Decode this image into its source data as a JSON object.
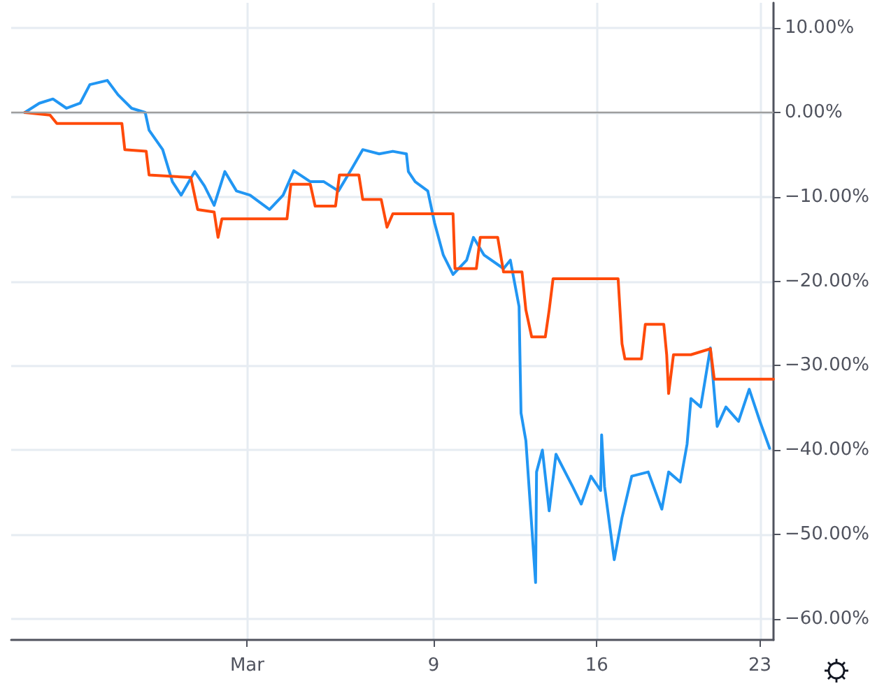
{
  "chart_data": {
    "type": "line",
    "xlim": [
      "--02-19T21:00",
      "--03-23T14:00"
    ],
    "xticks": [
      {
        "value": "--03-01",
        "label": "Mar"
      },
      {
        "value": "--03-09",
        "label": "9"
      },
      {
        "value": "--03-16",
        "label": "16"
      },
      {
        "value": "--03-23",
        "label": "23"
      }
    ],
    "ylim": [
      -62.5,
      13
    ],
    "yticks": [
      {
        "value": 10,
        "label": "10.00%"
      },
      {
        "value": 0,
        "label": "0.00%"
      },
      {
        "value": -10,
        "label": "−10.00%"
      },
      {
        "value": -20,
        "label": "−20.00%"
      },
      {
        "value": -30,
        "label": "−30.00%"
      },
      {
        "value": -40,
        "label": "−40.00%"
      },
      {
        "value": -50,
        "label": "−50.00%"
      },
      {
        "value": -60,
        "label": "−60.00%"
      }
    ],
    "grid": true,
    "marker": "none",
    "line_style": "solid",
    "ref_lines": [
      {
        "axis": "y",
        "value": 0,
        "color": "#9e9e9e"
      }
    ],
    "series": [
      {
        "color": "#2196f3",
        "x": [
          "--02-20T11:00",
          "--02-21T02:00",
          "--02-21T16:00",
          "--02-22T06:00",
          "--02-22T20:00",
          "--02-23T06:00",
          "--02-24T00:00",
          "--02-24T11:00",
          "--02-25T01:00",
          "--02-25T15:00",
          "--02-25T19:00",
          "--02-26T09:00",
          "--02-26T19:00",
          "--02-27T04:00",
          "--02-27T18:00",
          "--02-28T04:00",
          "--02-28T14:00",
          "--02-29T01:00",
          "--02-29T13:00",
          "--03-01T03:00",
          "--03-01T23:00",
          "--03-02T13:00",
          "--03-03T00:00",
          "--03-03T17:00",
          "--03-04T07:00",
          "--03-04T22:00",
          "--03-05T12:00",
          "--03-05T23:00",
          "--03-06T16:00",
          "--03-07T06:00",
          "--03-07T20:00",
          "--03-07T22:00",
          "--03-08T05:00",
          "--03-08T18:00",
          "--03-09T01:00",
          "--03-09T10:00",
          "--03-09T20:00",
          "--03-10T10:00",
          "--03-10T17:00",
          "--03-11T04:00",
          "--03-12T00:00",
          "--03-12T07:00",
          "--03-12T16:00",
          "--03-12T17:00",
          "--03-12T18:00",
          "--03-12T23:00",
          "--03-13T09:00",
          "--03-13T10:00",
          "--03-13T16:00",
          "--03-13T23:00",
          "--03-14T06:00",
          "--03-14T23:00",
          "--03-15T08:00",
          "--03-15T18:00",
          "--03-16T04:00",
          "--03-16T05:00",
          "--03-16T08:00",
          "--03-16T18:00",
          "--03-17T02:00",
          "--03-17T12:00",
          "--03-18T05:00",
          "--03-18T19:00",
          "--03-19T02:00",
          "--03-19T14:00",
          "--03-19T21:00",
          "--03-20T01:00",
          "--03-20T11:00",
          "--03-20T21:00",
          "--03-21T04:00",
          "--03-21T13:00",
          "--03-22T02:00",
          "--03-22T13:00",
          "--03-23T00:00",
          "--03-23T10:00"
        ],
        "values": [
          0,
          1.1,
          1.6,
          0.5,
          1.1,
          3.3,
          3.8,
          2.1,
          0.5,
          0,
          -2.1,
          -4.4,
          -8.2,
          -9.8,
          -7,
          -8.7,
          -11,
          -7,
          -9.3,
          -9.8,
          -11.5,
          -9.8,
          -6.9,
          -8.2,
          -8.2,
          -9.3,
          -6.6,
          -4.4,
          -4.9,
          -4.6,
          -4.9,
          -7,
          -8.2,
          -9.3,
          -13.1,
          -16.9,
          -19.2,
          -17.5,
          -14.8,
          -16.9,
          -18.5,
          -17.5,
          -23,
          -29.5,
          -35.6,
          -38.9,
          -55.7,
          -42.6,
          -40,
          -47.2,
          -40.5,
          -44.3,
          -46.4,
          -43.1,
          -44.8,
          -38.2,
          -44.3,
          -53,
          -48,
          -43.1,
          -42.6,
          -47,
          -42.6,
          -43.8,
          -39.3,
          -33.9,
          -34.9,
          -27.9,
          -37.2,
          -34.9,
          -36.6,
          -32.8,
          -36.6,
          -39.8
        ]
      },
      {
        "color": "#ff4a0a",
        "x": [
          "--02-20T11:00",
          "--02-21T13:00",
          "--02-21T20:00",
          "--02-24T15:00",
          "--02-24T18:00",
          "--02-25T16:00",
          "--02-25T19:00",
          "--02-27T14:00",
          "--02-27T21:00",
          "--02-28T14:00",
          "--02-28T18:00",
          "--02-28T22:00",
          "--03-02T17:00",
          "--03-02T21:00",
          "--03-03T17:00",
          "--03-03T22:00",
          "--03-04T19:00",
          "--03-04T23:00",
          "--03-05T19:00",
          "--03-05T23:00",
          "--03-06T18:00",
          "--03-07T00:00",
          "--03-07T06:00",
          "--03-09T20:00",
          "--03-09T22:00",
          "--03-10T20:00",
          "--03-11T00:00",
          "--03-11T18:00",
          "--03-12T00:00",
          "--03-12T19:00",
          "--03-12T23:00",
          "--03-13T05:00",
          "--03-13T19:00",
          "--03-13T23:00",
          "--03-14T03:00",
          "--03-16T22:00",
          "--03-17T02:00",
          "--03-17T05:00",
          "--03-17T22:00",
          "--03-18T02:00",
          "--03-18T21:00",
          "--03-19T00:00",
          "--03-19T02:00",
          "--03-19T07:00",
          "--03-20T01:00",
          "--03-20T21:00",
          "--03-21T01:00",
          "--03-23T14:00"
        ],
        "values": [
          0,
          -0.3,
          -1.3,
          -1.3,
          -4.4,
          -4.6,
          -7.4,
          -7.7,
          -11.5,
          -11.8,
          -14.8,
          -12.6,
          -12.6,
          -8.5,
          -8.5,
          -11.1,
          -11.1,
          -7.4,
          -7.4,
          -10.3,
          -10.3,
          -13.6,
          -12,
          -12,
          -18.5,
          -18.5,
          -14.8,
          -14.8,
          -18.9,
          -18.9,
          -23.4,
          -26.6,
          -26.6,
          -23.4,
          -19.7,
          -19.7,
          -27.4,
          -29.2,
          -29.2,
          -25.1,
          -25.1,
          -28.7,
          -33.3,
          -28.7,
          -28.7,
          -28,
          -31.6,
          -31.6
        ]
      }
    ]
  }
}
